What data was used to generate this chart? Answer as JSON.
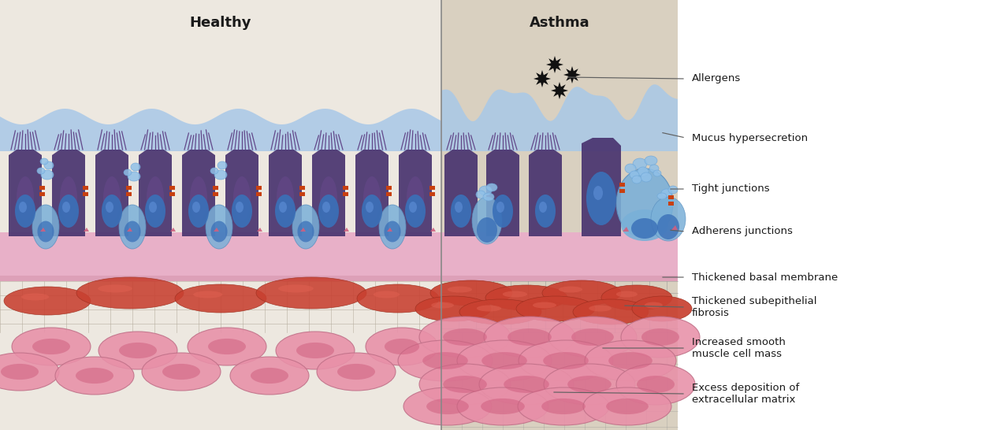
{
  "fig_width": 12.55,
  "fig_height": 5.46,
  "dpi": 100,
  "bg_color": "#ffffff",
  "healthy_bg": "#ede8e0",
  "asthma_bg": "#d9d0c0",
  "mucus_color": "#a8c8e8",
  "epithelium_bg": "#e8b0c8",
  "cell_dark_purple": "#4a3570",
  "cell_mid_purple": "#5a4a8a",
  "cell_light_blue": "#7ab0d8",
  "cell_goblet_blue": "#90c0e8",
  "nucleus_blue": "#3a70b8",
  "cilia_color": "#5a3a80",
  "tight_junction_color": "#c84010",
  "adherens_color": "#d06080",
  "fibrosis_red": "#c84030",
  "muscle_pink": "#e890a8",
  "muscle_dark_pink": "#d06080",
  "grid_color": "#909090",
  "label_color": "#1a1a1a",
  "line_color": "#606060",
  "title_healthy": "Healthy",
  "title_asthma": "Asthma",
  "labels": [
    "Allergens",
    "Mucus hypersecretion",
    "Tight junctions",
    "Adherens junctions",
    "Thickened basal membrane",
    "Thickened subepithelial\nfibrosis",
    "Increased smooth\nmuscle cell mass",
    "Excess deposition of\nextracellular matrix"
  ]
}
